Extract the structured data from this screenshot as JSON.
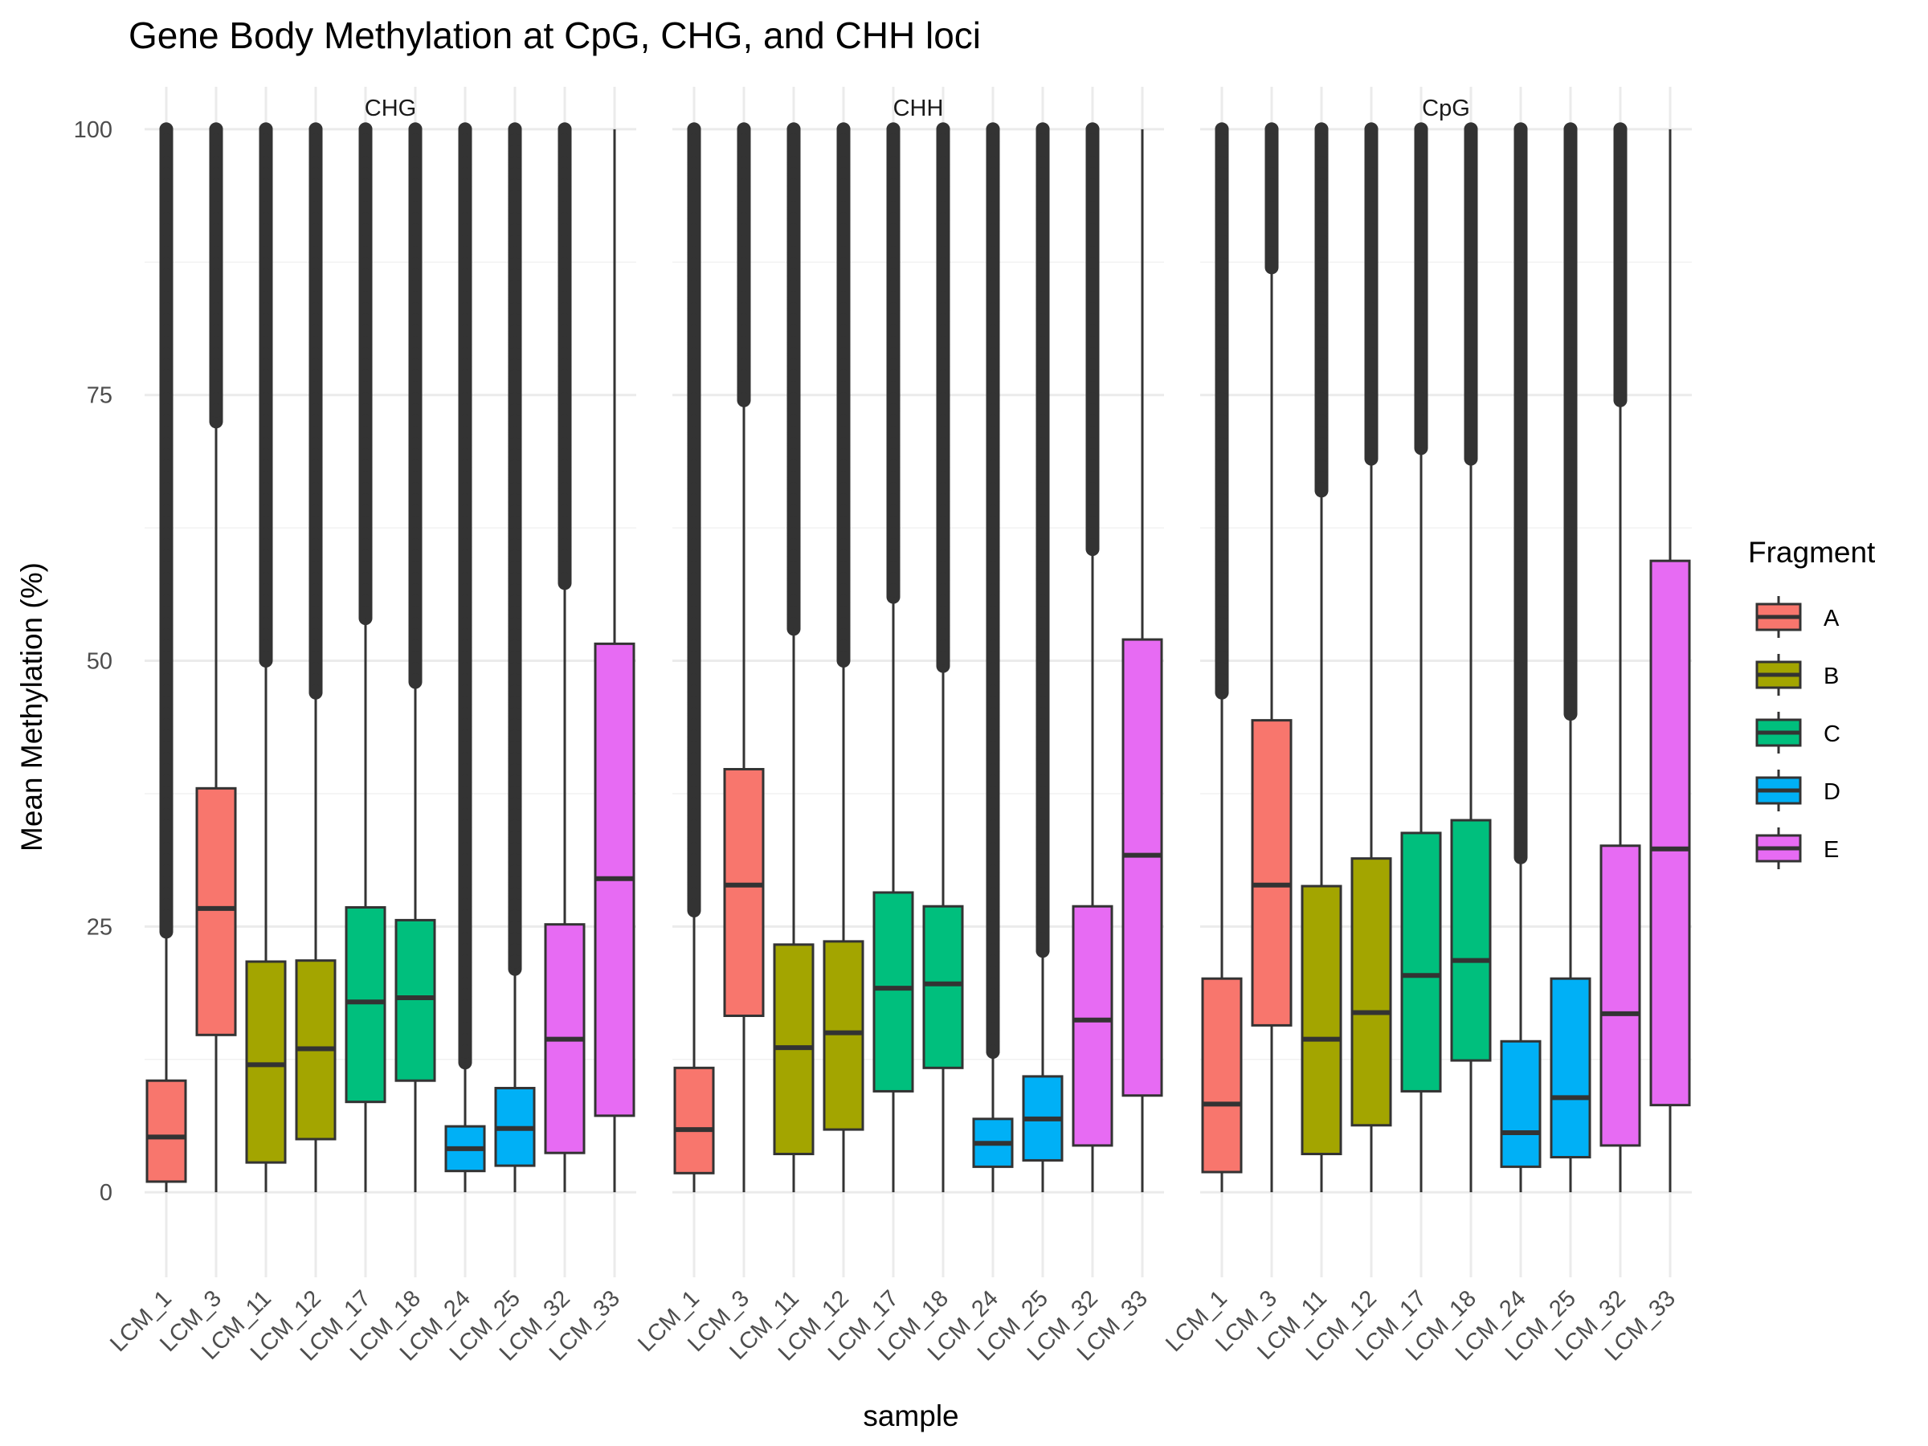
{
  "chart_data": {
    "type": "boxplot",
    "title": "Gene Body Methylation at CpG, CHG, and CHH loci",
    "xlabel": "sample",
    "ylabel": "Mean Methylation (%)",
    "ylim": [
      -8,
      104
    ],
    "y_ticks": [
      0,
      25,
      50,
      75,
      100
    ],
    "grid": true,
    "legend": {
      "title": "Fragment",
      "position": "right",
      "entries": [
        {
          "name": "A",
          "color": "#F8766D"
        },
        {
          "name": "B",
          "color": "#A3A500"
        },
        {
          "name": "C",
          "color": "#00BF7D"
        },
        {
          "name": "D",
          "color": "#00B0F6"
        },
        {
          "name": "E",
          "color": "#E76BF3"
        }
      ]
    },
    "categories": [
      "LCM_1",
      "LCM_3",
      "LCM_11",
      "LCM_12",
      "LCM_17",
      "LCM_18",
      "LCM_24",
      "LCM_25",
      "LCM_32",
      "LCM_33"
    ],
    "fragments": [
      "A",
      "A",
      "B",
      "B",
      "C",
      "C",
      "D",
      "D",
      "E",
      "E"
    ],
    "panels": [
      {
        "name": "CHG",
        "boxes": [
          {
            "sample": "LCM_1",
            "fragment": "A",
            "min": 0,
            "q1": 1.0,
            "median": 5.2,
            "q3": 10.5,
            "whisker_high": 24.5,
            "outliers_from": 24.5,
            "outliers_to": 100
          },
          {
            "sample": "LCM_3",
            "fragment": "A",
            "min": 0,
            "q1": 14.8,
            "median": 26.7,
            "q3": 38.0,
            "whisker_high": 72.5,
            "outliers_from": 72.5,
            "outliers_to": 100
          },
          {
            "sample": "LCM_11",
            "fragment": "B",
            "min": 0,
            "q1": 2.8,
            "median": 12.0,
            "q3": 21.7,
            "whisker_high": 50.0,
            "outliers_from": 50.0,
            "outliers_to": 100
          },
          {
            "sample": "LCM_12",
            "fragment": "B",
            "min": 0,
            "q1": 5.0,
            "median": 13.5,
            "q3": 21.8,
            "whisker_high": 47.0,
            "outliers_from": 47.0,
            "outliers_to": 100
          },
          {
            "sample": "LCM_17",
            "fragment": "C",
            "min": 0,
            "q1": 8.5,
            "median": 17.9,
            "q3": 26.8,
            "whisker_high": 54.0,
            "outliers_from": 54.0,
            "outliers_to": 100
          },
          {
            "sample": "LCM_18",
            "fragment": "C",
            "min": 0,
            "q1": 10.5,
            "median": 18.3,
            "q3": 25.6,
            "whisker_high": 48.0,
            "outliers_from": 48.0,
            "outliers_to": 100
          },
          {
            "sample": "LCM_24",
            "fragment": "D",
            "min": 0,
            "q1": 2.0,
            "median": 4.1,
            "q3": 6.2,
            "whisker_high": 12.2,
            "outliers_from": 12.2,
            "outliers_to": 100
          },
          {
            "sample": "LCM_25",
            "fragment": "D",
            "min": 0,
            "q1": 2.5,
            "median": 6.0,
            "q3": 9.8,
            "whisker_high": 21.0,
            "outliers_from": 21.0,
            "outliers_to": 100
          },
          {
            "sample": "LCM_32",
            "fragment": "E",
            "min": 0,
            "q1": 3.7,
            "median": 14.4,
            "q3": 25.2,
            "whisker_high": 57.3,
            "outliers_from": 57.3,
            "outliers_to": 100
          },
          {
            "sample": "LCM_33",
            "fragment": "E",
            "min": 0,
            "q1": 7.2,
            "median": 29.5,
            "q3": 51.6,
            "whisker_high": 100,
            "outliers_from": null,
            "outliers_to": null
          }
        ]
      },
      {
        "name": "CHH",
        "boxes": [
          {
            "sample": "LCM_1",
            "fragment": "A",
            "min": 0,
            "q1": 1.8,
            "median": 5.9,
            "q3": 11.7,
            "whisker_high": 26.5,
            "outliers_from": 26.5,
            "outliers_to": 100
          },
          {
            "sample": "LCM_3",
            "fragment": "A",
            "min": 0,
            "q1": 16.6,
            "median": 28.9,
            "q3": 39.8,
            "whisker_high": 74.5,
            "outliers_from": 74.5,
            "outliers_to": 100
          },
          {
            "sample": "LCM_11",
            "fragment": "B",
            "min": 0,
            "q1": 3.6,
            "median": 13.6,
            "q3": 23.3,
            "whisker_high": 53.0,
            "outliers_from": 53.0,
            "outliers_to": 100
          },
          {
            "sample": "LCM_12",
            "fragment": "B",
            "min": 0,
            "q1": 5.9,
            "median": 15.0,
            "q3": 23.6,
            "whisker_high": 50.0,
            "outliers_from": 50.0,
            "outliers_to": 100
          },
          {
            "sample": "LCM_17",
            "fragment": "C",
            "min": 0,
            "q1": 9.5,
            "median": 19.2,
            "q3": 28.2,
            "whisker_high": 56.0,
            "outliers_from": 56.0,
            "outliers_to": 100
          },
          {
            "sample": "LCM_18",
            "fragment": "C",
            "min": 0,
            "q1": 11.7,
            "median": 19.6,
            "q3": 26.9,
            "whisker_high": 49.5,
            "outliers_from": 49.5,
            "outliers_to": 100
          },
          {
            "sample": "LCM_24",
            "fragment": "D",
            "min": 0,
            "q1": 2.4,
            "median": 4.6,
            "q3": 6.9,
            "whisker_high": 13.2,
            "outliers_from": 13.2,
            "outliers_to": 100
          },
          {
            "sample": "LCM_25",
            "fragment": "D",
            "min": 0,
            "q1": 3.0,
            "median": 6.9,
            "q3": 10.9,
            "whisker_high": 22.7,
            "outliers_from": 22.7,
            "outliers_to": 100
          },
          {
            "sample": "LCM_32",
            "fragment": "E",
            "min": 0,
            "q1": 4.4,
            "median": 16.2,
            "q3": 26.9,
            "whisker_high": 60.5,
            "outliers_from": 60.5,
            "outliers_to": 100
          },
          {
            "sample": "LCM_33",
            "fragment": "E",
            "min": 0,
            "q1": 9.1,
            "median": 31.7,
            "q3": 52.0,
            "whisker_high": 100,
            "outliers_from": null,
            "outliers_to": null
          }
        ]
      },
      {
        "name": "CpG",
        "boxes": [
          {
            "sample": "LCM_1",
            "fragment": "A",
            "min": 0,
            "q1": 1.9,
            "median": 8.3,
            "q3": 20.1,
            "whisker_high": 47.0,
            "outliers_from": 47.0,
            "outliers_to": 100
          },
          {
            "sample": "LCM_3",
            "fragment": "A",
            "min": 0,
            "q1": 15.7,
            "median": 28.9,
            "q3": 44.4,
            "whisker_high": 87.0,
            "outliers_from": 87.0,
            "outliers_to": 100
          },
          {
            "sample": "LCM_11",
            "fragment": "B",
            "min": 0,
            "q1": 3.6,
            "median": 14.4,
            "q3": 28.8,
            "whisker_high": 66.0,
            "outliers_from": 66.0,
            "outliers_to": 100
          },
          {
            "sample": "LCM_12",
            "fragment": "B",
            "min": 0,
            "q1": 6.3,
            "median": 16.9,
            "q3": 31.4,
            "whisker_high": 69.0,
            "outliers_from": 69.0,
            "outliers_to": 100
          },
          {
            "sample": "LCM_17",
            "fragment": "C",
            "min": 0,
            "q1": 9.5,
            "median": 20.4,
            "q3": 33.8,
            "whisker_high": 70.0,
            "outliers_from": 70.0,
            "outliers_to": 100
          },
          {
            "sample": "LCM_18",
            "fragment": "C",
            "min": 0,
            "q1": 12.4,
            "median": 21.8,
            "q3": 35.0,
            "whisker_high": 69.0,
            "outliers_from": 69.0,
            "outliers_to": 100
          },
          {
            "sample": "LCM_24",
            "fragment": "D",
            "min": 0,
            "q1": 2.4,
            "median": 5.6,
            "q3": 14.2,
            "whisker_high": 31.5,
            "outliers_from": 31.5,
            "outliers_to": 100
          },
          {
            "sample": "LCM_25",
            "fragment": "D",
            "min": 0,
            "q1": 3.3,
            "median": 8.9,
            "q3": 20.1,
            "whisker_high": 45.0,
            "outliers_from": 45.0,
            "outliers_to": 100
          },
          {
            "sample": "LCM_32",
            "fragment": "E",
            "min": 0,
            "q1": 4.4,
            "median": 16.8,
            "q3": 32.6,
            "whisker_high": 74.5,
            "outliers_from": 74.5,
            "outliers_to": 100
          },
          {
            "sample": "LCM_33",
            "fragment": "E",
            "min": 0,
            "q1": 8.2,
            "median": 32.3,
            "q3": 59.4,
            "whisker_high": 100,
            "outliers_from": null,
            "outliers_to": null
          }
        ]
      }
    ]
  }
}
